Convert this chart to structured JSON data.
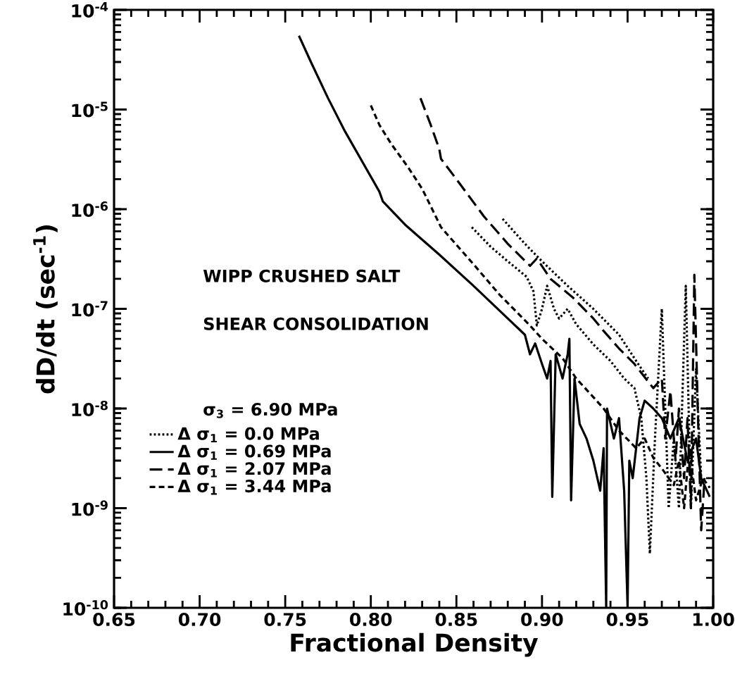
{
  "chart_data": {
    "type": "line",
    "xlabel": "Fractional Density",
    "ylabel": "dD/dt (sec$^{-1}$)",
    "annotations": [
      "WIPP CRUSHED SALT",
      "SHEAR CONSOLIDATION",
      "σ$_{3}$ = 6.90 MPa"
    ],
    "log": "y",
    "legend": "left",
    "xlim": [
      0.65,
      1.0
    ],
    "ylim": [
      1e-10,
      0.0001
    ],
    "xticks": [
      0.65,
      {
        "value": 0.7,
        "label": "0.70"
      },
      0.75,
      {
        "value": 0.8,
        "label": "0.80"
      },
      0.85,
      {
        "value": 0.9,
        "label": "0.90"
      },
      0.95,
      {
        "value": 1.0,
        "label": "1.00"
      }
    ],
    "yticks": [
      {
        "value": 1e-10,
        "label": "10$^{-10}$"
      },
      {
        "value": 1e-09,
        "label": "10$^{-9}$"
      },
      {
        "value": 1e-08,
        "label": "10$^{-8}$"
      },
      {
        "value": 1e-07,
        "label": "10$^{-7}$"
      },
      {
        "value": 1e-06,
        "label": "10$^{-6}$"
      },
      {
        "value": 1e-05,
        "label": "10$^{-5}$"
      },
      {
        "value": 0.0001,
        "label": "10$^{-4}$"
      }
    ],
    "series": [
      {
        "name": "Δ σ$_{1}$ = 0.0 MPa",
        "color": "#000000",
        "line_style": "dotted",
        "x": [
          0.859,
          0.87,
          0.88,
          0.891,
          0.895,
          0.897,
          0.9,
          0.903,
          0.907,
          0.91,
          0.915,
          0.92,
          0.93,
          0.94,
          0.948,
          0.954,
          0.958,
          0.961,
          0.963,
          0.966,
          0.97,
          0.974,
          0.977,
          0.98,
          0.984,
          0.987,
          0.99,
          0.993,
          null,
          0.877,
          0.89,
          0.9,
          0.915,
          0.93,
          0.945,
          0.955,
          0.962
        ],
        "values": [
          6.6e-07,
          4.2e-07,
          3e-07,
          2.1e-07,
          1.5e-07,
          6.8e-08,
          1e-07,
          1.7e-07,
          1e-07,
          8e-08,
          1e-07,
          7e-08,
          4.4e-08,
          3e-08,
          2e-08,
          1.6e-08,
          8e-09,
          2e-09,
          3.5e-10,
          5e-09,
          1e-07,
          1e-09,
          5e-09,
          1e-09,
          1.7e-07,
          1e-09,
          2.5e-08,
          2e-09,
          null,
          8e-07,
          4.5e-07,
          3e-07,
          1.7e-07,
          1e-07,
          5.5e-08,
          3e-08,
          2e-08
        ]
      },
      {
        "name": "Δ σ$_{1}$ = 0.69 MPa",
        "color": "#000000",
        "line_style": "solid",
        "x": [
          0.758,
          0.765,
          0.775,
          0.785,
          0.795,
          0.805,
          0.807,
          0.82,
          0.84,
          0.86,
          0.88,
          0.89,
          0.893,
          0.896,
          0.9,
          0.903,
          0.905,
          0.906,
          0.908,
          0.912,
          0.915,
          0.916,
          0.917,
          0.919,
          0.922,
          0.926,
          0.93,
          0.934,
          0.936,
          0.9375,
          0.938,
          0.942,
          0.945,
          0.948,
          0.95,
          0.951,
          0.953,
          0.957,
          0.96,
          0.965,
          0.97,
          0.975,
          0.98,
          0.985,
          0.99,
          0.993,
          0.998
        ],
        "values": [
          5.5e-05,
          3e-05,
          1.3e-05,
          6e-06,
          3e-06,
          1.5e-06,
          1.2e-06,
          7e-07,
          3.5e-07,
          1.7e-07,
          8e-08,
          5.5e-08,
          3.5e-08,
          4.5e-08,
          2.8e-08,
          2e-08,
          3e-08,
          1.3e-09,
          3.5e-08,
          2e-08,
          3.5e-08,
          5e-08,
          1.2e-09,
          2e-08,
          7e-09,
          5e-09,
          3e-09,
          1.5e-09,
          4e-09,
          1e-10,
          1e-08,
          5e-09,
          8e-09,
          1.5e-09,
          1e-10,
          3e-09,
          2e-09,
          8e-09,
          1.2e-08,
          1e-08,
          8e-09,
          5e-09,
          8e-09,
          3e-09,
          5e-09,
          2e-09,
          1.3e-09
        ]
      },
      {
        "name": "Δ σ$_{1}$ = 2.07 MPa",
        "color": "#000000",
        "line_style": "dashed",
        "x": [
          0.829,
          0.835,
          0.84,
          0.841,
          0.85,
          0.866,
          0.88,
          0.893,
          0.897,
          0.905,
          0.918,
          0.93,
          0.936,
          0.945,
          0.954,
          0.965,
          0.97,
          0.972,
          0.975,
          0.978,
          0.98,
          0.983,
          0.985,
          0.987,
          0.989,
          0.991,
          0.993,
          0.995
        ],
        "values": [
          1.3e-05,
          7e-06,
          4e-06,
          3.2e-06,
          2e-06,
          8.5e-07,
          4.5e-07,
          2.7e-07,
          3.2e-07,
          2e-07,
          1.3e-07,
          8e-08,
          6e-08,
          4e-08,
          2.8e-08,
          1.6e-08,
          2e-08,
          5e-09,
          1.5e-08,
          3e-09,
          1e-08,
          2e-09,
          8e-09,
          1e-09,
          2.2e-07,
          1e-08,
          6e-10,
          2e-09
        ]
      },
      {
        "name": "Δ σ$_{1}$ = 3.44 MPa",
        "color": "#000000",
        "line_style": "dashed",
        "x": [
          0.8,
          0.805,
          0.812,
          0.822,
          0.83,
          0.841,
          0.845,
          0.86,
          0.875,
          0.893,
          0.9,
          0.912,
          0.92,
          0.93,
          0.936,
          0.945,
          0.955,
          0.96,
          0.965,
          0.97,
          0.977,
          0.98,
          0.983,
          0.986,
          0.99,
          0.994,
          0.998
        ],
        "values": [
          1.1e-05,
          7e-06,
          4.5e-06,
          2.6e-06,
          1.6e-06,
          6.6e-07,
          5.5e-07,
          2.8e-07,
          1.4e-07,
          6.8e-08,
          5e-08,
          3.2e-08,
          2e-08,
          1.3e-08,
          1e-08,
          6e-09,
          4e-09,
          5e-09,
          3.2e-09,
          2.5e-09,
          1.7e-09,
          3e-09,
          1e-09,
          4e-09,
          1.2e-09,
          2e-09,
          1.6e-09
        ]
      }
    ]
  }
}
